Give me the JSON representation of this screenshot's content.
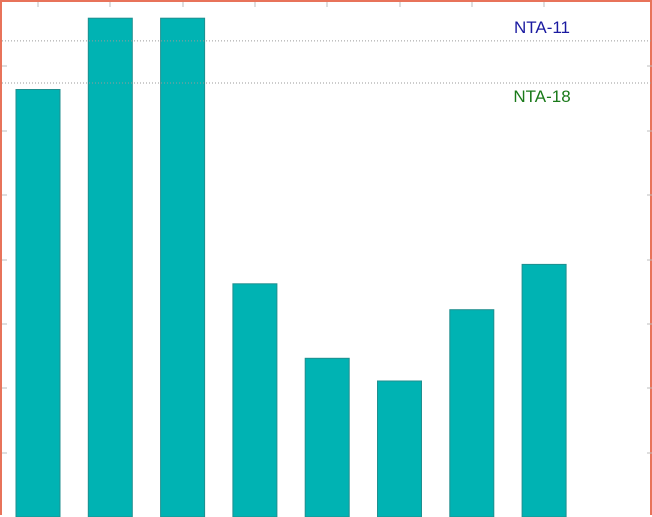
{
  "chart_data": {
    "type": "bar",
    "categories": [
      "",
      "",
      "",
      "",
      "",
      "",
      "",
      ""
    ],
    "values": [
      6.6,
      7.7,
      7.7,
      3.6,
      2.45,
      2.1,
      3.2,
      3.9
    ],
    "ylim": [
      0,
      7.95
    ],
    "bar_color": "#00b3b3",
    "grid": false,
    "reference_lines": [
      {
        "label": "NTA-11",
        "value": 7.35,
        "color": "#1a1aa0"
      },
      {
        "label": "NTA-18",
        "value": 6.7,
        "color": "#1a7a1a"
      }
    ]
  }
}
